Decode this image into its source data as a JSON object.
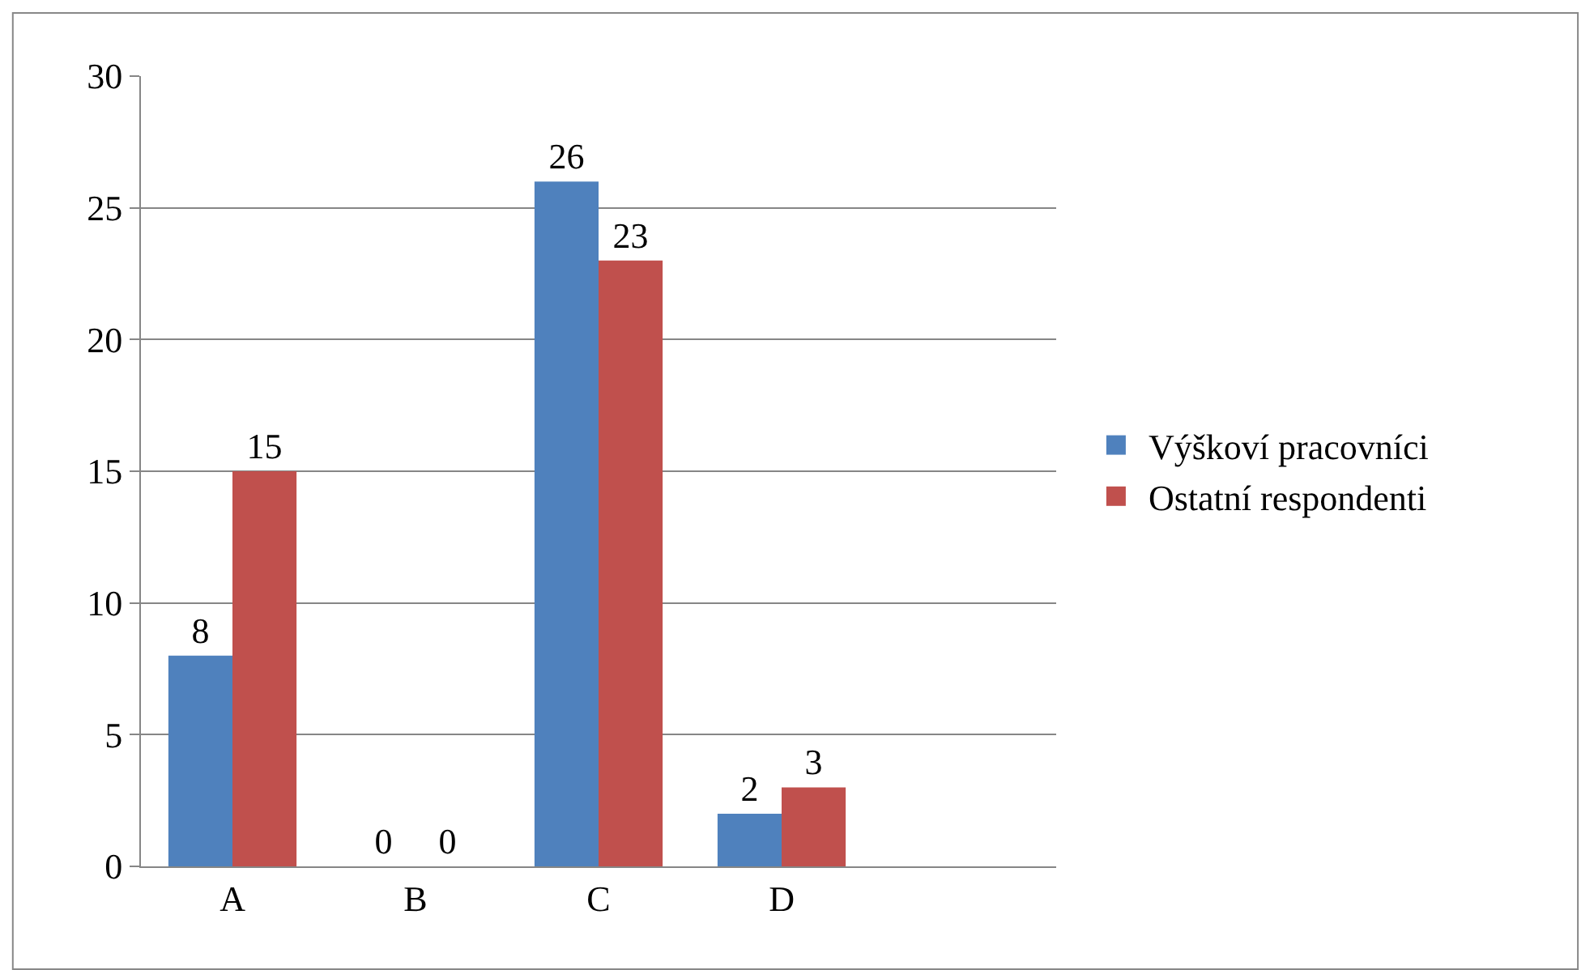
{
  "chart_data": {
    "type": "bar",
    "categories": [
      "A",
      "B",
      "C",
      "D",
      null
    ],
    "series": [
      {
        "name": "Výškoví pracovníci",
        "color": "#4f81bd",
        "values": [
          8,
          0,
          26,
          2,
          null
        ]
      },
      {
        "name": "Ostatní respondenti",
        "color": "#c0504d",
        "values": [
          15,
          0,
          23,
          3,
          null
        ]
      }
    ],
    "ylim": [
      0,
      30
    ],
    "yticks": [
      0,
      5,
      10,
      15,
      20,
      25,
      30
    ],
    "grid": "y",
    "legend": "right",
    "data_labels": true
  }
}
